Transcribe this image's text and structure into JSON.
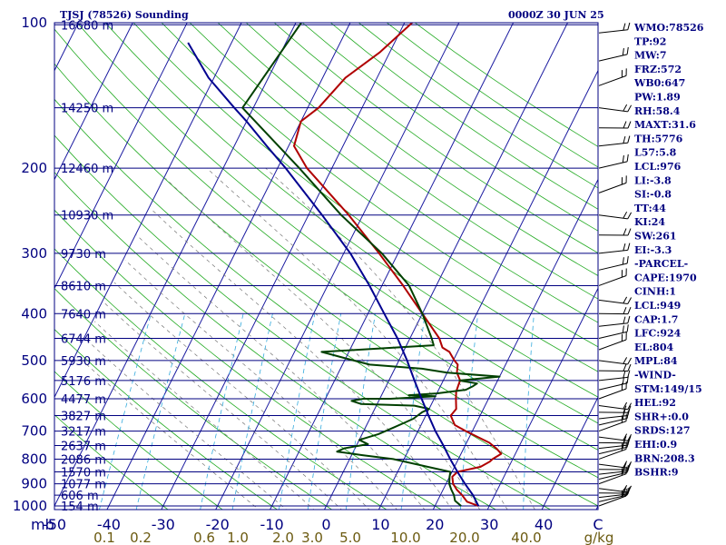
{
  "chart_data": {
    "type": "line",
    "title": "TJSJ (78526) Sounding",
    "valid_time": "0000Z 30 JUN 25",
    "ylim": [
      100,
      1000
    ],
    "y_log": true,
    "pressure_ticks": [
      "100",
      "200",
      "300",
      "400",
      "500",
      "600",
      "700",
      "800",
      "900",
      "1000"
    ],
    "pressure_values": [
      100,
      200,
      300,
      400,
      500,
      600,
      700,
      800,
      900,
      1000
    ],
    "height_levels": [
      {
        "p": 101,
        "label": "16680 m"
      },
      {
        "p": 150,
        "label": "14250 m"
      },
      {
        "p": 200,
        "label": "12460 m"
      },
      {
        "p": 250,
        "label": "10930 m"
      },
      {
        "p": 300,
        "label": "9730 m"
      },
      {
        "p": 350,
        "label": "8610 m"
      },
      {
        "p": 400,
        "label": "7640 m"
      },
      {
        "p": 450,
        "label": "6744 m"
      },
      {
        "p": 500,
        "label": "5930 m"
      },
      {
        "p": 550,
        "label": "5176 m"
      },
      {
        "p": 600,
        "label": "4477 m"
      },
      {
        "p": 650,
        "label": "3827 m"
      },
      {
        "p": 700,
        "label": "3217 m"
      },
      {
        "p": 750,
        "label": "2637 m"
      },
      {
        "p": 800,
        "label": "2086 m"
      },
      {
        "p": 850,
        "label": "1570 m"
      },
      {
        "p": 900,
        "label": "1077 m"
      },
      {
        "p": 950,
        "label": "606 m"
      },
      {
        "p": 1000,
        "label": "154 m"
      }
    ],
    "xlim": [
      -50,
      50
    ],
    "temp_ticks": [
      "-50",
      "-40",
      "-30",
      "-20",
      "-10",
      "0",
      "10",
      "20",
      "30",
      "40",
      "C"
    ],
    "temp_tick_values": [
      -50,
      -40,
      -30,
      -20,
      -10,
      0,
      10,
      20,
      30,
      40,
      50
    ],
    "corner_label": "mb",
    "mixing_ratio_labels": [
      "0.1",
      "0.2",
      "0.6",
      "1.0",
      "2.0",
      "3.0",
      "5.0",
      "10.0",
      "20.0",
      "40.0",
      "g/kg"
    ],
    "series": [
      {
        "name": "Temperature",
        "color": "#b00000",
        "points": [
          [
            1000,
            28
          ],
          [
            980,
            25.5
          ],
          [
            950,
            24
          ],
          [
            925,
            22.5
          ],
          [
            900,
            21.3
          ],
          [
            870,
            20.5
          ],
          [
            850,
            21.0
          ],
          [
            830,
            24.8
          ],
          [
            810,
            26.0
          ],
          [
            800,
            26.3
          ],
          [
            780,
            27.4
          ],
          [
            760,
            26.0
          ],
          [
            740,
            24.2
          ],
          [
            700,
            18.8
          ],
          [
            680,
            16.2
          ],
          [
            650,
            14.6
          ],
          [
            630,
            15.0
          ],
          [
            600,
            14.0
          ],
          [
            580,
            13.4
          ],
          [
            560,
            13.2
          ],
          [
            550,
            13.1
          ],
          [
            530,
            11.8
          ],
          [
            510,
            11.2
          ],
          [
            500,
            10.2
          ],
          [
            480,
            8.5
          ],
          [
            470,
            6.8
          ],
          [
            450,
            5.4
          ],
          [
            400,
            0.0
          ],
          [
            350,
            -6.1
          ],
          [
            300,
            -13.5
          ],
          [
            250,
            -22.6
          ],
          [
            200,
            -34.6
          ],
          [
            180,
            -39.0
          ],
          [
            160,
            -40.0
          ],
          [
            150,
            -38.0
          ],
          [
            130,
            -35.8
          ],
          [
            115,
            -31.8
          ],
          [
            100,
            -28.6
          ]
        ]
      },
      {
        "name": "Dewpoint",
        "color": "#004000",
        "points": [
          [
            1000,
            24.8
          ],
          [
            975,
            23.2
          ],
          [
            950,
            22.5
          ],
          [
            925,
            21.5
          ],
          [
            900,
            20.6
          ],
          [
            870,
            20.0
          ],
          [
            850,
            19.7
          ],
          [
            800,
            8.0
          ],
          [
            785,
            2.0
          ],
          [
            772,
            -3.0
          ],
          [
            760,
            -2.0
          ],
          [
            745,
            2.0
          ],
          [
            730,
            0.0
          ],
          [
            710,
            3.0
          ],
          [
            690,
            5.0
          ],
          [
            670,
            7.0
          ],
          [
            660,
            8.0
          ],
          [
            650,
            8.5
          ],
          [
            640,
            9.0
          ],
          [
            630,
            10.0
          ],
          [
            620,
            7.0
          ],
          [
            615,
            -3.0
          ],
          [
            606,
            -5.0
          ],
          [
            600,
            -3.0
          ],
          [
            600,
            2.0
          ],
          [
            593,
            10.0
          ],
          [
            590,
            5.0
          ],
          [
            585,
            10.0
          ],
          [
            575,
            15.0
          ],
          [
            565,
            16.0
          ],
          [
            558,
            16.5
          ],
          [
            550,
            13.0
          ],
          [
            540,
            20.0
          ],
          [
            530,
            10.0
          ],
          [
            520,
            5.0
          ],
          [
            510,
            -5.0
          ],
          [
            495,
            -10.0
          ],
          [
            480,
            -15.0
          ],
          [
            465,
            5.0
          ],
          [
            450,
            4.0
          ],
          [
            400,
            0.0
          ],
          [
            350,
            -5.0
          ],
          [
            300,
            -13.0
          ],
          [
            250,
            -24.0
          ],
          [
            200,
            -36.0
          ],
          [
            150,
            -52.0
          ],
          [
            100,
            -49.0
          ]
        ]
      },
      {
        "name": "Parcel",
        "color": "#000090",
        "points": [
          [
            1000,
            28.0
          ],
          [
            950,
            26.0
          ],
          [
            900,
            23.5
          ],
          [
            850,
            21.0
          ],
          [
            800,
            18.5
          ],
          [
            750,
            16.0
          ],
          [
            700,
            13.2
          ],
          [
            650,
            10.5
          ],
          [
            600,
            7.7
          ],
          [
            550,
            4.7
          ],
          [
            500,
            1.5
          ],
          [
            450,
            -2.3
          ],
          [
            400,
            -7.0
          ],
          [
            350,
            -12.3
          ],
          [
            300,
            -18.8
          ],
          [
            250,
            -27.5
          ],
          [
            200,
            -38.5
          ],
          [
            180,
            -44.0
          ],
          [
            160,
            -50.0
          ],
          [
            150,
            -53.5
          ],
          [
            130,
            -61.0
          ],
          [
            110,
            -68.0
          ]
        ]
      }
    ],
    "wind_barbs": [
      {
        "p": 1000
      },
      {
        "p": 980
      },
      {
        "p": 960
      },
      {
        "p": 940
      },
      {
        "p": 920
      },
      {
        "p": 900
      },
      {
        "p": 880
      },
      {
        "p": 860
      },
      {
        "p": 840
      },
      {
        "p": 820
      },
      {
        "p": 800
      },
      {
        "p": 780
      },
      {
        "p": 760
      },
      {
        "p": 740
      },
      {
        "p": 720
      },
      {
        "p": 700
      },
      {
        "p": 680
      },
      {
        "p": 660
      },
      {
        "p": 640
      },
      {
        "p": 620
      },
      {
        "p": 600
      },
      {
        "p": 575
      },
      {
        "p": 550
      },
      {
        "p": 525
      },
      {
        "p": 500
      },
      {
        "p": 475
      },
      {
        "p": 450
      },
      {
        "p": 425
      },
      {
        "p": 400
      },
      {
        "p": 375
      },
      {
        "p": 350
      },
      {
        "p": 325
      },
      {
        "p": 300
      },
      {
        "p": 275
      },
      {
        "p": 250
      },
      {
        "p": 225
      },
      {
        "p": 200
      },
      {
        "p": 180
      },
      {
        "p": 165
      },
      {
        "p": 150
      },
      {
        "p": 135
      },
      {
        "p": 120
      },
      {
        "p": 105
      }
    ]
  },
  "indices": [
    "WMO:78526",
    "TP:92",
    "MW:7",
    "FRZ:572",
    "WB0:647",
    "PW:1.89",
    "RH:58.4",
    "MAXT:31.6",
    "TH:5776",
    "L57:5.8",
    "LCL:976",
    "LI:-3.8",
    "SI:-0.8",
    "TT:44",
    "KI:24",
    "SW:261",
    "EI:-3.3",
    "-PARCEL-",
    "CAPE:1970",
    "CINH:1",
    "LCL:949",
    "CAP:1.7",
    "LFC:924",
    "EL:804",
    "MPL:84",
    "-WIND-",
    "STM:149/15",
    "HEL:92",
    "SHR+:0.0",
    "SRDS:127",
    "EHI:0.9",
    "BRN:208.3",
    "BSHR:9"
  ]
}
